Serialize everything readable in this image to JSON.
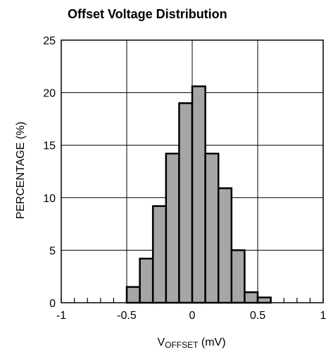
{
  "chart_data": {
    "type": "bar",
    "title": "Offset Voltage Distribution",
    "xlabel_main": "V",
    "xlabel_sub": "OFFSET",
    "xlabel_unit": " (mV)",
    "ylabel": "PERCENTAGE (%)",
    "xlim": [
      -1,
      1
    ],
    "ylim": [
      0,
      25
    ],
    "x_tick_labels": [
      "-1",
      "-0.5",
      "0",
      "0.5",
      "1"
    ],
    "y_tick_labels": [
      "0",
      "5",
      "10",
      "15",
      "20",
      "25"
    ],
    "bin_width": 0.1,
    "bins": [
      {
        "x_start": -0.5,
        "x_end": -0.4,
        "value": 1.5
      },
      {
        "x_start": -0.4,
        "x_end": -0.3,
        "value": 4.2
      },
      {
        "x_start": -0.3,
        "x_end": -0.2,
        "value": 9.2
      },
      {
        "x_start": -0.2,
        "x_end": -0.1,
        "value": 14.2
      },
      {
        "x_start": -0.1,
        "x_end": 0.0,
        "value": 19.0
      },
      {
        "x_start": 0.0,
        "x_end": 0.1,
        "value": 20.6
      },
      {
        "x_start": 0.1,
        "x_end": 0.2,
        "value": 14.2
      },
      {
        "x_start": 0.2,
        "x_end": 0.3,
        "value": 10.9
      },
      {
        "x_start": 0.3,
        "x_end": 0.4,
        "value": 5.0
      },
      {
        "x_start": 0.4,
        "x_end": 0.5,
        "value": 1.0
      },
      {
        "x_start": 0.5,
        "x_end": 0.6,
        "value": 0.5
      }
    ],
    "grid": true,
    "bar_color": "#a6a6a6",
    "edge_color": "#000000"
  }
}
